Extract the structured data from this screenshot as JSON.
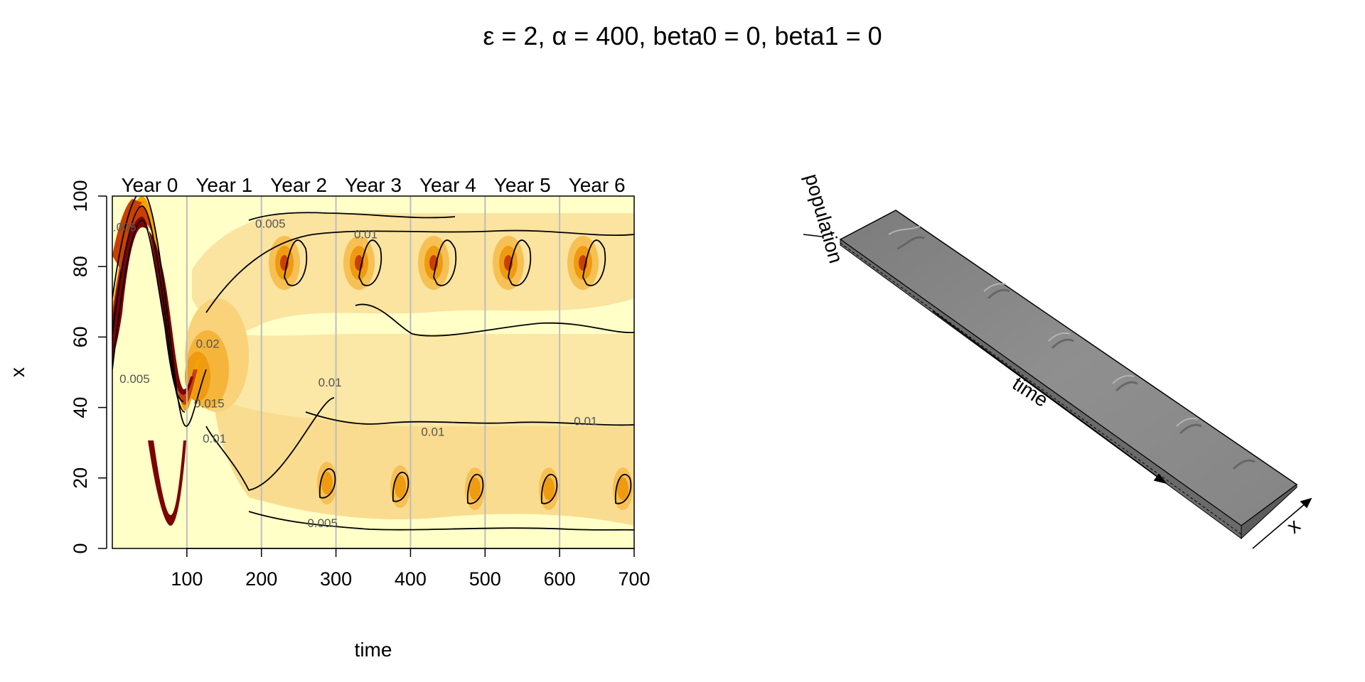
{
  "title": "ε = 2, α = 400, beta0 = 0, beta1 = 0",
  "chart_data": [
    {
      "type": "heatmap",
      "subtype": "filled-contour",
      "xlabel": "time",
      "ylabel": "x",
      "xlim": [
        0,
        700
      ],
      "ylim": [
        0,
        100
      ],
      "x_ticks": [
        "100",
        "200",
        "300",
        "400",
        "500",
        "600",
        "700"
      ],
      "y_ticks": [
        "0",
        "20",
        "40",
        "60",
        "80",
        "100"
      ],
      "year_labels": [
        "Year 0",
        "Year 1",
        "Year 2",
        "Year 3",
        "Year 4",
        "Year 5",
        "Year 6"
      ],
      "year_boundaries": [
        100,
        200,
        300,
        400,
        500,
        600
      ],
      "contour_labels": [
        {
          "text": "0.005",
          "x": 12,
          "y": 90
        },
        {
          "text": "0.005",
          "x": 30,
          "y": 47
        },
        {
          "text": "0.02",
          "x": 128,
          "y": 57
        },
        {
          "text": "0.015",
          "x": 130,
          "y": 40
        },
        {
          "text": "0.01",
          "x": 137,
          "y": 30
        },
        {
          "text": "0.005",
          "x": 212,
          "y": 91
        },
        {
          "text": "0.01",
          "x": 340,
          "y": 88
        },
        {
          "text": "0.01",
          "x": 292,
          "y": 46
        },
        {
          "text": "0.01",
          "x": 430,
          "y": 32
        },
        {
          "text": "0.01",
          "x": 635,
          "y": 35
        },
        {
          "text": "0.005",
          "x": 282,
          "y": 6
        }
      ],
      "colors": {
        "low": "#ffffc8",
        "mid": "#f5a300",
        "high": "#7a0403"
      }
    },
    {
      "type": "surface-3d",
      "axis_labels": [
        "population",
        "time",
        "x"
      ],
      "surface_color": "#8c8c8c"
    }
  ]
}
